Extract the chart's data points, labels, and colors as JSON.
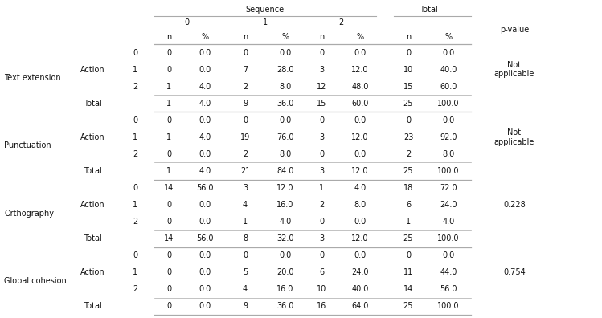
{
  "seq_header": "Sequence",
  "total_header": "Total",
  "pvalue_header": "p-value",
  "action_label": "Action",
  "total_label": "Total",
  "seq_subheaders": [
    "0",
    "1",
    "2"
  ],
  "n_pct": [
    "n",
    "%",
    "n",
    "%",
    "n",
    "%",
    "n",
    "%"
  ],
  "sections": [
    "Text extension",
    "Punctuation",
    "Orthography",
    "Global cohesion"
  ],
  "p_values": [
    "Not\napplicable",
    "Not\napplicable",
    "0.228",
    "0.754"
  ],
  "table_data": {
    "Text extension": {
      "r0": [
        "0",
        "0.0",
        "0",
        "0.0",
        "0",
        "0.0",
        "0",
        "0.0"
      ],
      "r1": [
        "0",
        "0.0",
        "7",
        "28.0",
        "3",
        "12.0",
        "10",
        "40.0"
      ],
      "r2": [
        "1",
        "4.0",
        "2",
        "8.0",
        "12",
        "48.0",
        "15",
        "60.0"
      ],
      "rt": [
        "1",
        "4.0",
        "9",
        "36.0",
        "15",
        "60.0",
        "25",
        "100.0"
      ]
    },
    "Punctuation": {
      "r0": [
        "0",
        "0.0",
        "0",
        "0.0",
        "0",
        "0.0",
        "0",
        "0.0"
      ],
      "r1": [
        "1",
        "4.0",
        "19",
        "76.0",
        "3",
        "12.0",
        "23",
        "92.0"
      ],
      "r2": [
        "0",
        "0.0",
        "2",
        "8.0",
        "0",
        "0.0",
        "2",
        "8.0"
      ],
      "rt": [
        "1",
        "4.0",
        "21",
        "84.0",
        "3",
        "12.0",
        "25",
        "100.0"
      ]
    },
    "Orthography": {
      "r0": [
        "14",
        "56.0",
        "3",
        "12.0",
        "1",
        "4.0",
        "18",
        "72.0"
      ],
      "r1": [
        "0",
        "0.0",
        "4",
        "16.0",
        "2",
        "8.0",
        "6",
        "24.0"
      ],
      "r2": [
        "0",
        "0.0",
        "1",
        "4.0",
        "0",
        "0.0",
        "1",
        "4.0"
      ],
      "rt": [
        "14",
        "56.0",
        "8",
        "32.0",
        "3",
        "12.0",
        "25",
        "100.0"
      ]
    },
    "Global cohesion": {
      "r0": [
        "0",
        "0.0",
        "0",
        "0.0",
        "0",
        "0.0",
        "0",
        "0.0"
      ],
      "r1": [
        "0",
        "0.0",
        "5",
        "20.0",
        "6",
        "24.0",
        "11",
        "44.0"
      ],
      "r2": [
        "0",
        "0.0",
        "4",
        "16.0",
        "10",
        "40.0",
        "14",
        "56.0"
      ],
      "rt": [
        "0",
        "0.0",
        "9",
        "36.0",
        "16",
        "64.0",
        "25",
        "100.0"
      ]
    }
  },
  "bg_color": "#ffffff",
  "text_color": "#111111",
  "line_color": "#aaaaaa",
  "font_size": 7.0,
  "font_family": "DejaVu Sans"
}
